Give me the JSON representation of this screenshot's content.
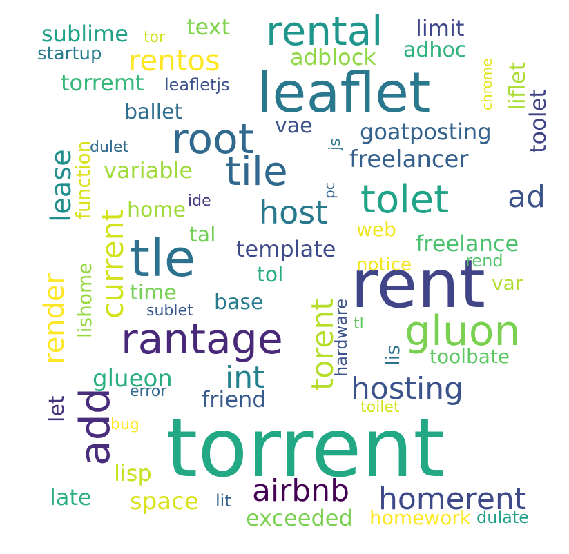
{
  "words": [
    {
      "text": "torrent",
      "color": "#22a884"
    },
    {
      "text": "rent",
      "color": "#414487"
    },
    {
      "text": "leaflet",
      "color": "#2a788e"
    },
    {
      "text": "rental",
      "color": "#1f968b"
    },
    {
      "text": "tle",
      "color": "#2c728e"
    },
    {
      "text": "rantage",
      "color": "#482878"
    },
    {
      "text": "root",
      "color": "#31688e"
    },
    {
      "text": "tile",
      "color": "#31688e"
    },
    {
      "text": "tolet",
      "color": "#20a386"
    },
    {
      "text": "gluon",
      "color": "#7ad151"
    },
    {
      "text": "add",
      "color": "#472d7b"
    },
    {
      "text": "airbnb",
      "color": "#440154"
    },
    {
      "text": "homerent",
      "color": "#3e4989"
    },
    {
      "text": "hosting",
      "color": "#3b528b"
    },
    {
      "text": "rentos",
      "color": "#fde725"
    },
    {
      "text": "host",
      "color": "#29798e"
    },
    {
      "text": "current",
      "color": "#d2e21b"
    },
    {
      "text": "torent",
      "color": "#b5de2b"
    },
    {
      "text": "render",
      "color": "#fde725"
    },
    {
      "text": "lease",
      "color": "#21908d"
    },
    {
      "text": "ad",
      "color": "#3b528b"
    },
    {
      "text": "int",
      "color": "#26828e"
    },
    {
      "text": "template",
      "color": "#3e4a89"
    },
    {
      "text": "freelancer",
      "color": "#355f8d"
    },
    {
      "text": "goatposting",
      "color": "#33638d"
    },
    {
      "text": "liflet",
      "color": "#aadc32"
    },
    {
      "text": "toolbate",
      "color": "#5ec962"
    },
    {
      "text": "freelance",
      "color": "#4ac16d"
    },
    {
      "text": "exceeded",
      "color": "#7ad151"
    },
    {
      "text": "homework",
      "color": "#fde725"
    },
    {
      "text": "space",
      "color": "#d8e219"
    },
    {
      "text": "late",
      "color": "#29af7f"
    },
    {
      "text": "lisp",
      "color": "#c8e020"
    },
    {
      "text": "let",
      "color": "#46337e"
    },
    {
      "text": "glueon",
      "color": "#28ae80"
    },
    {
      "text": "friend",
      "color": "#375a8c"
    },
    {
      "text": "function",
      "color": "#d8e219"
    },
    {
      "text": "variable",
      "color": "#9fda3a"
    },
    {
      "text": "home",
      "color": "#a0da39"
    },
    {
      "text": "lishome",
      "color": "#95d840"
    },
    {
      "text": "ballet",
      "color": "#2e6e8e"
    },
    {
      "text": "torremt",
      "color": "#35b779"
    },
    {
      "text": "leafletjs",
      "color": "#3b528b"
    },
    {
      "text": "sublime",
      "color": "#1fa187"
    },
    {
      "text": "startup",
      "color": "#287d8e"
    },
    {
      "text": "tor",
      "color": "#d2e21b"
    },
    {
      "text": "text",
      "color": "#7fd34e"
    },
    {
      "text": "limit",
      "color": "#3f4788"
    },
    {
      "text": "adhoc",
      "color": "#2db27d"
    },
    {
      "text": "adblock",
      "color": "#8fd744"
    },
    {
      "text": "chrome",
      "color": "#e5e419"
    },
    {
      "text": "vae",
      "color": "#3b528b"
    },
    {
      "text": "js",
      "color": "#2a768e"
    },
    {
      "text": "pc",
      "color": "#33638d"
    },
    {
      "text": "ide",
      "color": "#453781"
    },
    {
      "text": "dulet",
      "color": "#306a8e"
    },
    {
      "text": "tal",
      "color": "#73d056"
    },
    {
      "text": "web",
      "color": "#f1e51d"
    },
    {
      "text": "notice",
      "color": "#f4e61e"
    },
    {
      "text": "rend",
      "color": "#54c568"
    },
    {
      "text": "tol",
      "color": "#29af7f"
    },
    {
      "text": "var",
      "color": "#b0dd2f"
    },
    {
      "text": "time",
      "color": "#75d054"
    },
    {
      "text": "base",
      "color": "#287c8e"
    },
    {
      "text": "sublet",
      "color": "#38588c"
    },
    {
      "text": "hardware",
      "color": "#3b528b"
    },
    {
      "text": "lis",
      "color": "#2c728e"
    },
    {
      "text": "tl",
      "color": "#5ec962"
    },
    {
      "text": "error",
      "color": "#31688e"
    },
    {
      "text": "bug",
      "color": "#fde725"
    },
    {
      "text": "toilet",
      "color": "#d5e21a"
    },
    {
      "text": "lit",
      "color": "#33638d"
    },
    {
      "text": "dulate",
      "color": "#1f9e89"
    },
    {
      "text": "toolet",
      "color": "#414487"
    }
  ]
}
